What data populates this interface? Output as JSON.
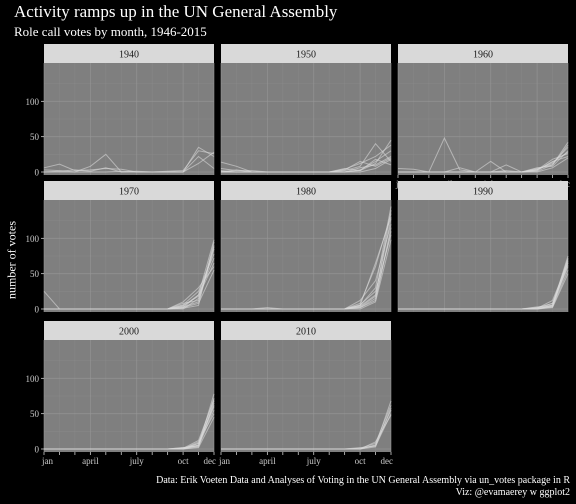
{
  "title": "Activity ramps up in the UN General Assembly",
  "subtitle": "Role call votes by month, 1946-2015",
  "caption_line1": "Data: Erik Voeten Data and Analyses of Voting in the UN General Assembly via un_votes package in R",
  "caption_line2": "Viz: @evamaerey w ggplot2",
  "colors": {
    "background": "#000000",
    "panel": "#7f7f7f",
    "strip": "#d9d9d9",
    "grid": "#999999",
    "line": "#d9d9d9"
  },
  "chart_data": {
    "type": "line",
    "facet_by": "decade",
    "ylabel": "number of votes",
    "ylim": [
      0,
      150
    ],
    "yticks": [
      0,
      50,
      100
    ],
    "xlabel": "",
    "xticks": [
      1,
      4,
      7,
      10,
      12
    ],
    "xtick_labels": [
      "jan",
      "april",
      "july",
      "oct",
      "dec"
    ],
    "xlim": [
      1,
      12
    ],
    "grid": true,
    "panels": [
      {
        "label": "1940",
        "series": [
          [
            6,
            11,
            2,
            3,
            5,
            4,
            0,
            0,
            1,
            2,
            30,
            26
          ],
          [
            0,
            0,
            0,
            8,
            25,
            0,
            0,
            0,
            0,
            0,
            35,
            22
          ],
          [
            3,
            2,
            0,
            0,
            0,
            1,
            0,
            0,
            0,
            0,
            12,
            28
          ],
          [
            0,
            1,
            3,
            1,
            6,
            0,
            1,
            0,
            0,
            0,
            22,
            5
          ]
        ]
      },
      {
        "label": "1950",
        "series": [
          [
            14,
            8,
            0,
            0,
            0,
            0,
            0,
            0,
            2,
            8,
            40,
            15
          ],
          [
            5,
            2,
            2,
            0,
            0,
            0,
            0,
            0,
            4,
            12,
            22,
            38
          ],
          [
            1,
            0,
            0,
            0,
            0,
            0,
            0,
            0,
            0,
            3,
            15,
            30
          ],
          [
            0,
            3,
            0,
            0,
            0,
            0,
            0,
            0,
            5,
            2,
            18,
            10
          ],
          [
            2,
            0,
            0,
            0,
            0,
            0,
            0,
            0,
            0,
            6,
            10,
            22
          ],
          [
            0,
            0,
            0,
            0,
            0,
            0,
            0,
            0,
            3,
            15,
            8,
            20
          ],
          [
            0,
            0,
            0,
            0,
            0,
            0,
            0,
            0,
            0,
            2,
            12,
            45
          ],
          [
            0,
            0,
            0,
            0,
            0,
            0,
            0,
            0,
            0,
            0,
            5,
            18
          ]
        ]
      },
      {
        "label": "1960",
        "series": [
          [
            5,
            4,
            0,
            48,
            3,
            0,
            0,
            0,
            0,
            3,
            14,
            28
          ],
          [
            0,
            0,
            0,
            0,
            0,
            0,
            15,
            0,
            0,
            5,
            10,
            42
          ],
          [
            0,
            0,
            0,
            0,
            6,
            0,
            0,
            10,
            0,
            2,
            15,
            22
          ],
          [
            0,
            0,
            0,
            0,
            0,
            0,
            0,
            2,
            0,
            6,
            8,
            30
          ],
          [
            0,
            0,
            0,
            0,
            0,
            0,
            0,
            0,
            0,
            4,
            12,
            35
          ],
          [
            0,
            0,
            0,
            0,
            0,
            0,
            0,
            0,
            0,
            3,
            18,
            26
          ],
          [
            0,
            0,
            0,
            0,
            0,
            0,
            0,
            0,
            0,
            1,
            10,
            38
          ],
          [
            0,
            0,
            0,
            0,
            0,
            0,
            0,
            0,
            0,
            0,
            6,
            20
          ]
        ]
      },
      {
        "label": "1970",
        "series": [
          [
            25,
            0,
            0,
            0,
            0,
            0,
            0,
            0,
            0,
            2,
            20,
            98
          ],
          [
            0,
            0,
            0,
            0,
            0,
            0,
            0,
            0,
            0,
            8,
            12,
            85
          ],
          [
            0,
            0,
            0,
            0,
            0,
            0,
            0,
            0,
            0,
            4,
            20,
            72
          ],
          [
            0,
            0,
            0,
            0,
            0,
            0,
            0,
            0,
            0,
            10,
            30,
            60
          ],
          [
            0,
            0,
            0,
            0,
            0,
            0,
            0,
            0,
            0,
            0,
            15,
            90
          ],
          [
            0,
            0,
            0,
            0,
            0,
            0,
            0,
            0,
            0,
            5,
            18,
            65
          ],
          [
            0,
            0,
            0,
            0,
            0,
            0,
            0,
            0,
            0,
            2,
            8,
            55
          ],
          [
            0,
            0,
            0,
            0,
            0,
            0,
            0,
            0,
            0,
            6,
            25,
            78
          ],
          [
            0,
            0,
            0,
            0,
            0,
            0,
            0,
            0,
            0,
            3,
            10,
            88
          ],
          [
            0,
            0,
            0,
            0,
            0,
            0,
            0,
            0,
            0,
            1,
            5,
            95
          ]
        ]
      },
      {
        "label": "1980",
        "series": [
          [
            0,
            0,
            0,
            0,
            0,
            0,
            0,
            0,
            0,
            5,
            30,
            145
          ],
          [
            0,
            0,
            0,
            0,
            0,
            0,
            0,
            0,
            0,
            8,
            60,
            135
          ],
          [
            0,
            0,
            0,
            2,
            0,
            0,
            0,
            0,
            0,
            4,
            20,
            128
          ],
          [
            0,
            0,
            0,
            0,
            0,
            0,
            0,
            0,
            0,
            12,
            40,
            120
          ],
          [
            0,
            0,
            0,
            0,
            0,
            0,
            0,
            0,
            0,
            2,
            15,
            110
          ],
          [
            0,
            0,
            0,
            0,
            0,
            0,
            0,
            0,
            0,
            6,
            25,
            105
          ],
          [
            0,
            0,
            0,
            0,
            0,
            0,
            0,
            0,
            0,
            3,
            18,
            140
          ],
          [
            0,
            0,
            0,
            0,
            0,
            0,
            0,
            0,
            0,
            0,
            10,
            98
          ],
          [
            0,
            0,
            0,
            0,
            0,
            0,
            0,
            0,
            0,
            5,
            65,
            130
          ],
          [
            0,
            0,
            0,
            0,
            0,
            0,
            0,
            0,
            0,
            2,
            12,
            115
          ]
        ]
      },
      {
        "label": "1990",
        "series": [
          [
            0,
            0,
            0,
            0,
            0,
            0,
            0,
            0,
            0,
            3,
            5,
            75
          ],
          [
            0,
            0,
            0,
            0,
            0,
            0,
            0,
            0,
            0,
            2,
            8,
            70
          ],
          [
            0,
            0,
            0,
            0,
            0,
            0,
            0,
            0,
            0,
            0,
            4,
            68
          ],
          [
            0,
            0,
            0,
            0,
            0,
            0,
            0,
            0,
            0,
            1,
            12,
            65
          ],
          [
            0,
            0,
            0,
            0,
            0,
            0,
            0,
            0,
            0,
            0,
            6,
            60
          ],
          [
            0,
            0,
            0,
            0,
            0,
            0,
            0,
            0,
            0,
            2,
            3,
            55
          ],
          [
            0,
            0,
            0,
            0,
            0,
            0,
            0,
            0,
            0,
            0,
            2,
            50
          ],
          [
            0,
            0,
            0,
            0,
            0,
            0,
            0,
            0,
            0,
            0,
            5,
            72
          ],
          [
            0,
            0,
            0,
            0,
            0,
            0,
            0,
            0,
            0,
            1,
            8,
            62
          ],
          [
            0,
            0,
            0,
            0,
            0,
            0,
            0,
            0,
            0,
            0,
            3,
            66
          ]
        ]
      },
      {
        "label": "2000",
        "series": [
          [
            0,
            0,
            0,
            0,
            0,
            0,
            0,
            0,
            0,
            2,
            5,
            78
          ],
          [
            0,
            0,
            0,
            0,
            0,
            0,
            0,
            0,
            0,
            1,
            8,
            72
          ],
          [
            0,
            0,
            0,
            0,
            0,
            0,
            0,
            0,
            0,
            0,
            3,
            68
          ],
          [
            0,
            0,
            0,
            0,
            0,
            0,
            0,
            0,
            0,
            0,
            6,
            60
          ],
          [
            0,
            0,
            0,
            0,
            0,
            0,
            0,
            0,
            0,
            2,
            4,
            55
          ],
          [
            0,
            0,
            0,
            0,
            0,
            0,
            0,
            0,
            0,
            0,
            10,
            50
          ],
          [
            0,
            0,
            0,
            0,
            0,
            0,
            0,
            0,
            0,
            0,
            2,
            45
          ],
          [
            0,
            0,
            0,
            0,
            0,
            0,
            0,
            0,
            0,
            1,
            12,
            70
          ],
          [
            0,
            0,
            0,
            0,
            0,
            0,
            0,
            0,
            0,
            0,
            5,
            65
          ],
          [
            0,
            0,
            0,
            0,
            0,
            0,
            0,
            0,
            0,
            0,
            8,
            62
          ]
        ]
      },
      {
        "label": "2010",
        "series": [
          [
            0,
            0,
            0,
            0,
            0,
            0,
            0,
            0,
            0,
            0,
            5,
            68
          ],
          [
            0,
            0,
            0,
            0,
            0,
            0,
            0,
            0,
            0,
            1,
            8,
            62
          ],
          [
            0,
            0,
            0,
            0,
            0,
            0,
            0,
            0,
            0,
            0,
            3,
            58
          ],
          [
            0,
            0,
            0,
            0,
            0,
            0,
            0,
            0,
            0,
            0,
            6,
            55
          ],
          [
            0,
            0,
            0,
            0,
            0,
            0,
            0,
            0,
            0,
            2,
            4,
            50
          ],
          [
            0,
            0,
            0,
            0,
            0,
            0,
            0,
            0,
            0,
            0,
            10,
            48
          ]
        ]
      }
    ]
  }
}
